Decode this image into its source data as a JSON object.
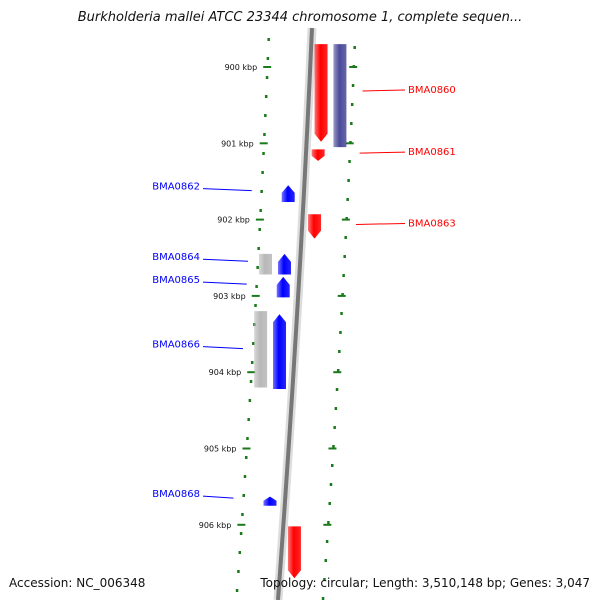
{
  "title": "Burkholderia mallei ATCC 23344 chromosome 1, complete sequen...",
  "footer": {
    "accession": "Accession: NC_006348",
    "summary": "Topology: circular; Length: 3,510,148 bp; Genes: 3,047"
  },
  "colors": {
    "forward_gene": "#ff0000",
    "reverse_gene": "#0000ff",
    "other_forward": "#4a4a9a",
    "other_reverse": "#b8b8b8",
    "backbone": "#777777",
    "tick": "#1b7a1b"
  },
  "ruler": {
    "ticks": [
      {
        "label": "900 kbp",
        "kbp": 900
      },
      {
        "label": "901 kbp",
        "kbp": 901
      },
      {
        "label": "902 kbp",
        "kbp": 902
      },
      {
        "label": "903 kbp",
        "kbp": 903
      },
      {
        "label": "904 kbp",
        "kbp": 904
      },
      {
        "label": "905 kbp",
        "kbp": 905
      },
      {
        "label": "906 kbp",
        "kbp": 906
      }
    ]
  },
  "features": [
    {
      "label": "BMA0860",
      "strand": "forward",
      "start_kbp": 899.7,
      "end_kbp": 900.98
    },
    {
      "label": "",
      "strand": "forward_other",
      "start_kbp": 899.7,
      "end_kbp": 901.05
    },
    {
      "label": "BMA0861",
      "strand": "forward",
      "start_kbp": 901.08,
      "end_kbp": 901.23
    },
    {
      "label": "BMA0862",
      "strand": "reverse",
      "start_kbp": 901.55,
      "end_kbp": 901.77
    },
    {
      "label": "BMA0863",
      "strand": "forward",
      "start_kbp": 901.93,
      "end_kbp": 902.25
    },
    {
      "label": "BMA0864",
      "strand": "reverse",
      "start_kbp": 902.45,
      "end_kbp": 902.72
    },
    {
      "label": "",
      "strand": "reverse_other",
      "start_kbp": 902.45,
      "end_kbp": 902.72
    },
    {
      "label": "BMA0865",
      "strand": "reverse",
      "start_kbp": 902.75,
      "end_kbp": 903.02
    },
    {
      "label": "BMA0866",
      "strand": "reverse",
      "start_kbp": 903.24,
      "end_kbp": 904.22
    },
    {
      "label": "",
      "strand": "reverse_other",
      "start_kbp": 903.2,
      "end_kbp": 904.2
    },
    {
      "label": "BMA0868",
      "strand": "reverse",
      "start_kbp": 905.63,
      "end_kbp": 905.75
    },
    {
      "label": "",
      "strand": "forward",
      "start_kbp": 906.02,
      "end_kbp": 906.7
    }
  ]
}
